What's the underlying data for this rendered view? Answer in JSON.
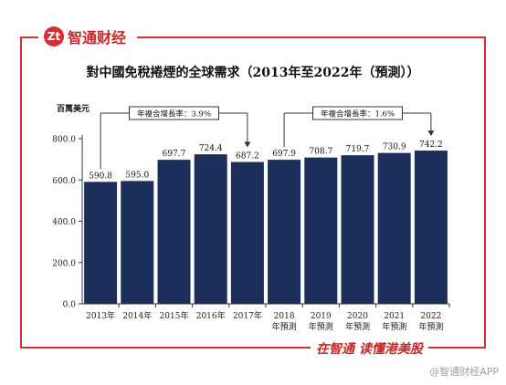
{
  "brand": {
    "logo_mark": "Zt",
    "name": "智通财经"
  },
  "footer": {
    "slogan": "在智通  读懂港美股",
    "watermark": "@智通财经APP"
  },
  "colors": {
    "bar": "#1c2f5a",
    "accent": "#d32f2f"
  },
  "chart_data": {
    "type": "bar",
    "title": "對中國免稅捲煙的全球需求（2013年至2022年（預測））",
    "unit_label": "百萬美元",
    "categories": [
      "2013年",
      "2014年",
      "2015年",
      "2016年",
      "2017年",
      "2018",
      "2019",
      "2020",
      "2021",
      "2022"
    ],
    "category_sublabels": [
      "",
      "",
      "",
      "",
      "",
      "年預測",
      "年預測",
      "年預測",
      "年預測",
      "年預測"
    ],
    "values": [
      590.8,
      595.0,
      697.7,
      724.4,
      687.2,
      697.9,
      708.7,
      719.7,
      730.9,
      742.2
    ],
    "value_labels": [
      "590.8",
      "595.0",
      "697.7",
      "724.4",
      "687.2",
      "697.9",
      "708.7",
      "719.7",
      "730.9",
      "742.2"
    ],
    "ylim": [
      0,
      800
    ],
    "yticks": [
      "0.0",
      "200.0",
      "400.0",
      "600.0",
      "800.0"
    ],
    "cagr_annotations": [
      {
        "label": "年複合增長率：3.9%",
        "from": 0,
        "to": 4
      },
      {
        "label": "年複合增長率：1.6%",
        "from": 5,
        "to": 9
      }
    ]
  }
}
